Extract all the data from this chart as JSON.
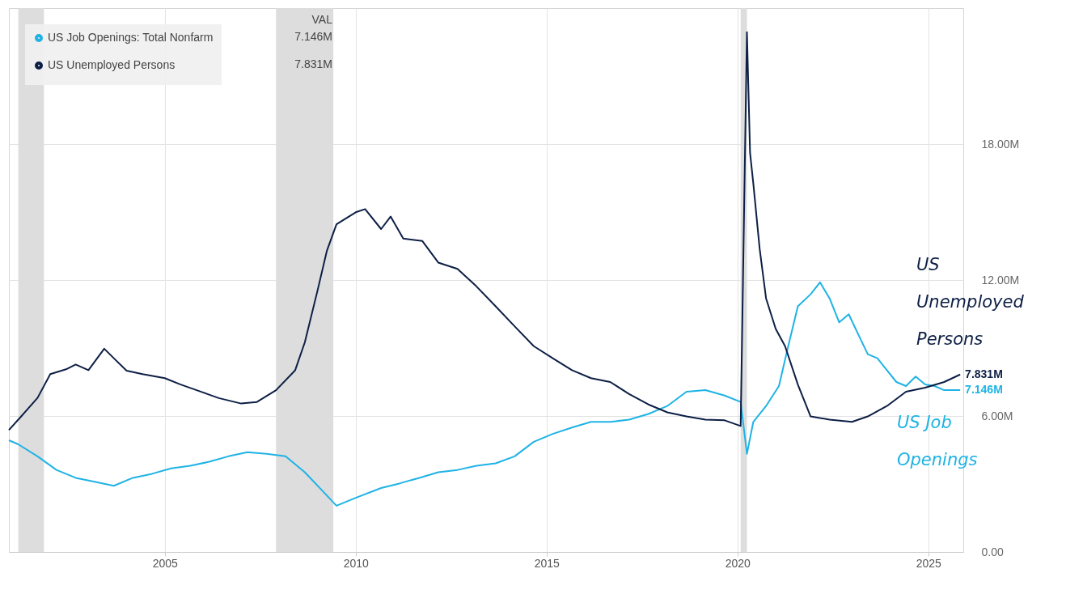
{
  "chart_data": {
    "type": "line",
    "legend_title": "VAL",
    "legend": "top left",
    "grid": true,
    "xlim": [
      "2000-12",
      "2025-12"
    ],
    "xticks": [
      "2005",
      "2010",
      "2015",
      "2020",
      "2025"
    ],
    "ylim": [
      0,
      24
    ],
    "yticks": [
      {
        "value": 0,
        "label": "0.00"
      },
      {
        "value": 6,
        "label": "6.00M"
      },
      {
        "value": 12,
        "label": "12.00M"
      },
      {
        "value": 18,
        "label": "18.00M"
      }
    ],
    "bands": [
      {
        "axis": "x",
        "from": "2001-03",
        "to": "2001-11",
        "color": "#dddddd"
      },
      {
        "axis": "x",
        "from": "2007-12",
        "to": "2009-06",
        "color": "#dddddd"
      },
      {
        "axis": "x",
        "from": "2020-02",
        "to": "2020-04",
        "color": "#dddddd"
      }
    ],
    "annotations": [
      "US Job Openings",
      "US Unemployed Persons"
    ],
    "series": [
      {
        "name": "US Job Openings: Total Nonfarm",
        "color": "#1fb3e5",
        "x": [
          "2000-12",
          "2001-03",
          "2001-09",
          "2002-03",
          "2002-09",
          "2003-03",
          "2003-09",
          "2004-03",
          "2004-09",
          "2005-03",
          "2005-09",
          "2006-03",
          "2006-09",
          "2007-03",
          "2007-09",
          "2008-03",
          "2008-09",
          "2009-03",
          "2009-07",
          "2010-01",
          "2010-09",
          "2011-03",
          "2011-09",
          "2012-03",
          "2012-09",
          "2013-03",
          "2013-09",
          "2014-03",
          "2014-09",
          "2015-03",
          "2015-09",
          "2016-03",
          "2016-09",
          "2017-03",
          "2017-09",
          "2018-03",
          "2018-09",
          "2019-03",
          "2019-09",
          "2020-02",
          "2020-04",
          "2020-06",
          "2020-10",
          "2021-02",
          "2021-05",
          "2021-08",
          "2021-12",
          "2022-03",
          "2022-06",
          "2022-09",
          "2022-12",
          "2023-03",
          "2023-06",
          "2023-09",
          "2023-12",
          "2024-03",
          "2024-06",
          "2024-09",
          "2024-12",
          "2025-03",
          "2025-06",
          "2025-11"
        ],
        "values": [
          4.93,
          4.75,
          4.22,
          3.62,
          3.27,
          3.1,
          2.92,
          3.27,
          3.45,
          3.69,
          3.8,
          3.98,
          4.22,
          4.4,
          4.33,
          4.22,
          3.52,
          2.64,
          2.04,
          2.39,
          2.82,
          3.03,
          3.27,
          3.52,
          3.62,
          3.8,
          3.91,
          4.22,
          4.86,
          5.21,
          5.49,
          5.74,
          5.74,
          5.84,
          6.09,
          6.44,
          7.07,
          7.14,
          6.9,
          6.62,
          4.33,
          5.74,
          6.44,
          7.32,
          9.08,
          10.84,
          11.37,
          11.9,
          11.19,
          10.13,
          10.49,
          9.61,
          8.73,
          8.55,
          8.02,
          7.5,
          7.32,
          7.74,
          7.39,
          7.32,
          7.14,
          7.146
        ],
        "value_labels": [
          null,
          null,
          null,
          null,
          null,
          null,
          null,
          null,
          null,
          null,
          null,
          null,
          null,
          null,
          null,
          null,
          null,
          null,
          null,
          null,
          null,
          null,
          null,
          null,
          null,
          null,
          null,
          null,
          null,
          null,
          null,
          null,
          null,
          null,
          null,
          null,
          null,
          null,
          null,
          null,
          null,
          null,
          null,
          null,
          null,
          null,
          null,
          null,
          null,
          null,
          null,
          null,
          null,
          null,
          null,
          null,
          null,
          null,
          null,
          null,
          null,
          "7.146M"
        ]
      },
      {
        "name": "US Unemployed Persons",
        "color": "#0d1f45",
        "x": [
          "2000-12",
          "2001-04",
          "2001-09",
          "2002-01",
          "2002-06",
          "2002-09",
          "2003-01",
          "2003-06",
          "2003-09",
          "2004-01",
          "2004-06",
          "2005-01",
          "2005-06",
          "2006-01",
          "2006-06",
          "2007-01",
          "2007-06",
          "2007-12",
          "2008-06",
          "2008-09",
          "2009-01",
          "2009-04",
          "2009-07",
          "2010-01",
          "2010-04",
          "2010-09",
          "2010-12",
          "2011-04",
          "2011-10",
          "2012-03",
          "2012-09",
          "2013-03",
          "2013-09",
          "2014-03",
          "2014-09",
          "2015-03",
          "2015-09",
          "2016-03",
          "2016-09",
          "2017-03",
          "2017-09",
          "2018-03",
          "2018-09",
          "2019-03",
          "2019-09",
          "2020-02",
          "2020-04",
          "2020-05",
          "2020-06",
          "2020-08",
          "2020-10",
          "2021-01",
          "2021-04",
          "2021-08",
          "2021-12",
          "2022-06",
          "2023-01",
          "2023-06",
          "2023-12",
          "2024-06",
          "2024-12",
          "2025-06",
          "2025-11"
        ],
        "values": [
          5.38,
          6.0,
          6.8,
          7.85,
          8.06,
          8.27,
          8.02,
          8.97,
          8.55,
          8.0,
          7.85,
          7.67,
          7.39,
          7.04,
          6.79,
          6.55,
          6.62,
          7.14,
          8.02,
          9.25,
          11.54,
          13.3,
          14.46,
          14.99,
          15.13,
          14.25,
          14.8,
          13.83,
          13.72,
          12.77,
          12.49,
          11.72,
          10.84,
          9.96,
          9.08,
          8.55,
          8.02,
          7.67,
          7.5,
          6.97,
          6.51,
          6.16,
          5.98,
          5.84,
          5.81,
          5.56,
          22.94,
          17.6,
          16.26,
          13.37,
          11.19,
          9.85,
          9.08,
          7.39,
          5.98,
          5.84,
          5.74,
          5.98,
          6.44,
          7.07,
          7.25,
          7.5,
          7.831
        ],
        "value_labels": [
          null,
          null,
          null,
          null,
          null,
          null,
          null,
          null,
          null,
          null,
          null,
          null,
          null,
          null,
          null,
          null,
          null,
          null,
          null,
          null,
          null,
          null,
          null,
          null,
          null,
          null,
          null,
          null,
          null,
          null,
          null,
          null,
          null,
          null,
          null,
          null,
          null,
          null,
          null,
          null,
          null,
          null,
          null,
          null,
          null,
          null,
          null,
          null,
          null,
          null,
          null,
          null,
          null,
          null,
          null,
          null,
          null,
          null,
          null,
          null,
          null,
          null,
          "7.831M"
        ]
      }
    ]
  }
}
